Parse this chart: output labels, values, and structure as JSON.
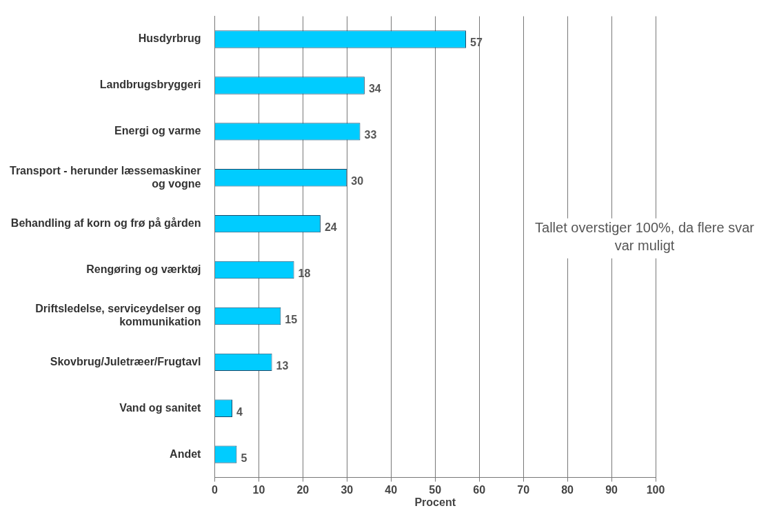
{
  "chart_data": {
    "type": "bar",
    "orientation": "horizontal",
    "categories": [
      "Husdyrbrug",
      "Landbrugsbryggeri",
      "Energi og varme",
      "Transport - herunder læssemaskiner og vogne",
      "Behandling af korn og frø på gården",
      "Rengøring og værktøj",
      "Driftsledelse, serviceydelser og kommunikation",
      "Skovbrug/Juletræer/Frugtavl",
      "Vand og sanitet",
      "Andet"
    ],
    "values": [
      57,
      34,
      33,
      30,
      24,
      18,
      15,
      13,
      4,
      5
    ],
    "color": "#00ccff",
    "xlim": [
      0,
      100
    ],
    "xticks": [
      0,
      10,
      20,
      30,
      40,
      50,
      60,
      70,
      80,
      90,
      100
    ],
    "xlabel": "Procent",
    "grid": "x",
    "legend": false,
    "data_labels": true,
    "annotations": [
      "Tallet overstiger 100%, da flere svar var muligt"
    ]
  }
}
